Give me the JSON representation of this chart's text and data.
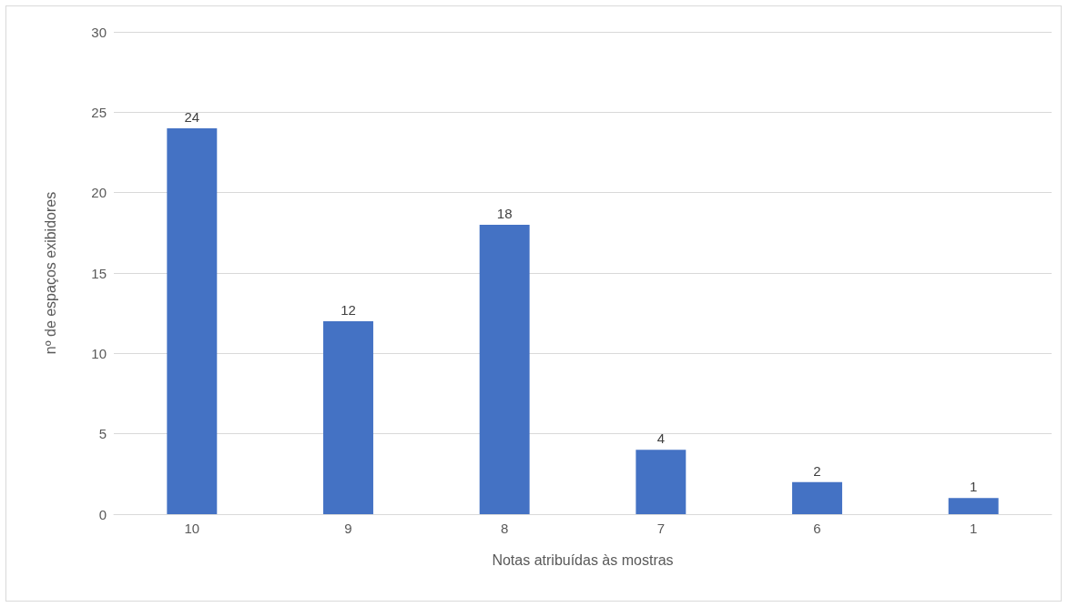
{
  "chart_data": {
    "type": "bar",
    "xlabel": "Notas atribuídas às mostras",
    "ylabel": "nº de espaços exibidores",
    "categories": [
      "10",
      "9",
      "8",
      "7",
      "6",
      "1"
    ],
    "values": [
      24,
      12,
      18,
      4,
      2,
      1
    ],
    "color": "#4472c4",
    "ylim": [
      0,
      30
    ],
    "yticks": [
      0,
      5,
      10,
      15,
      20,
      25,
      30
    ],
    "grid": "y",
    "data_labels": true
  }
}
